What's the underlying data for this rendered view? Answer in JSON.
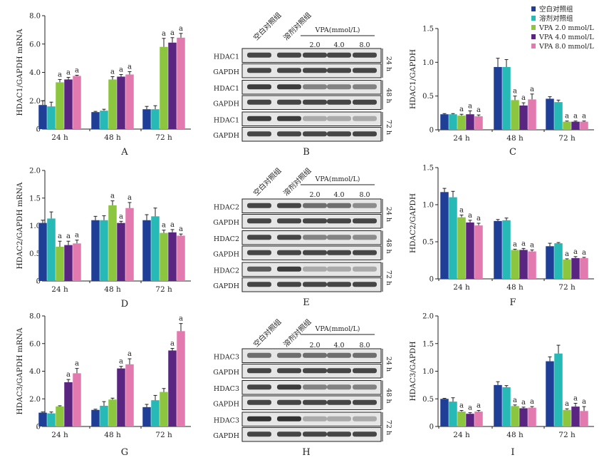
{
  "legend": {
    "entries": [
      {
        "label": "空白对照组",
        "color": "#1f3f97"
      },
      {
        "label": "溶剂对照组",
        "color": "#27b9b6"
      },
      {
        "label": "VPA 2.0 mmol/L",
        "color": "#8cc63f"
      },
      {
        "label": "VPA 4.0 mmol/L",
        "color": "#5a2580"
      },
      {
        "label": "VPA 8.0 mmol/L",
        "color": "#e27ab0"
      }
    ]
  },
  "chart_data": [
    {
      "panel": "A",
      "type": "bar",
      "ylabel": "HDAC1/GAPDH mRNA",
      "categories": [
        "24 h",
        "48 h",
        "72 h"
      ],
      "ylim": [
        0,
        8
      ],
      "yticks": [
        "0",
        "2.0",
        "4.0",
        "6.0",
        "8.0"
      ],
      "ytick_values": [
        0,
        2,
        4,
        6,
        8
      ],
      "series": [
        {
          "name": "空白对照组",
          "values": [
            1.7,
            1.2,
            1.4
          ],
          "errors": [
            0.3,
            0.05,
            0.2
          ]
        },
        {
          "name": "溶剂对照组",
          "values": [
            1.6,
            1.3,
            1.4
          ],
          "errors": [
            0.3,
            0.1,
            0.25
          ]
        },
        {
          "name": "VPA 2.0 mmol/L",
          "values": [
            3.3,
            3.5,
            5.8
          ],
          "errors": [
            0.2,
            0.2,
            0.6
          ]
        },
        {
          "name": "VPA 4.0 mmol/L",
          "values": [
            3.5,
            3.7,
            6.1
          ],
          "errors": [
            0.15,
            0.15,
            0.35
          ]
        },
        {
          "name": "VPA 8.0 mmol/L",
          "values": [
            3.75,
            3.85,
            6.45
          ],
          "errors": [
            0.05,
            0.2,
            0.3
          ]
        }
      ],
      "annotations": [
        "",
        "",
        "a",
        "a",
        "a"
      ]
    },
    {
      "panel": "C",
      "type": "bar",
      "ylabel": "HDAC1/GAPDH",
      "categories": [
        "24 h",
        "48 h",
        "72 h"
      ],
      "ylim": [
        0,
        1.5
      ],
      "yticks": [
        "0",
        "0.5",
        "1.0",
        "1.5"
      ],
      "ytick_values": [
        0,
        0.5,
        1.0,
        1.5
      ],
      "series": [
        {
          "name": "空白对照组",
          "values": [
            0.23,
            0.93,
            0.46
          ],
          "errors": [
            0.01,
            0.13,
            0.03
          ]
        },
        {
          "name": "溶剂对照组",
          "values": [
            0.23,
            0.93,
            0.41
          ],
          "errors": [
            0.01,
            0.11,
            0.03
          ]
        },
        {
          "name": "VPA 2.0 mmol/L",
          "values": [
            0.21,
            0.44,
            0.12
          ],
          "errors": [
            0.02,
            0.06,
            0.01
          ]
        },
        {
          "name": "VPA 4.0 mmol/L",
          "values": [
            0.23,
            0.36,
            0.12
          ],
          "errors": [
            0.05,
            0.04,
            0.01
          ]
        },
        {
          "name": "VPA 8.0 mmol/L",
          "values": [
            0.2,
            0.45,
            0.12
          ],
          "errors": [
            0.02,
            0.08,
            0.01
          ]
        }
      ],
      "annotations": [
        "",
        "",
        "a",
        "a",
        "a"
      ]
    },
    {
      "panel": "D",
      "type": "bar",
      "ylabel": "HDAC2/GAPDH mRNA",
      "categories": [
        "24 h",
        "48 h",
        "72 h"
      ],
      "ylim": [
        0,
        2.0
      ],
      "yticks": [
        "0",
        "0.5",
        "1.0",
        "1.5",
        "2.0"
      ],
      "ytick_values": [
        0,
        0.5,
        1.0,
        1.5,
        2.0
      ],
      "series": [
        {
          "name": "空白对照组",
          "values": [
            1.05,
            1.1,
            1.1
          ],
          "errors": [
            0.05,
            0.07,
            0.1
          ]
        },
        {
          "name": "溶剂对照组",
          "values": [
            1.13,
            1.1,
            1.17
          ],
          "errors": [
            0.12,
            0.08,
            0.15
          ]
        },
        {
          "name": "VPA 2.0 mmol/L",
          "values": [
            0.62,
            1.37,
            0.87
          ],
          "errors": [
            0.1,
            0.08,
            0.05
          ]
        },
        {
          "name": "VPA 4.0 mmol/L",
          "values": [
            0.65,
            1.05,
            0.88
          ],
          "errors": [
            0.07,
            0.03,
            0.05
          ]
        },
        {
          "name": "VPA 8.0 mmol/L",
          "values": [
            0.68,
            1.32,
            0.82
          ],
          "errors": [
            0.06,
            0.1,
            0.03
          ]
        }
      ],
      "annotations": [
        "",
        "",
        "a",
        "a",
        "a"
      ]
    },
    {
      "panel": "F",
      "type": "bar",
      "ylabel": "HDAC2/GAPDH",
      "categories": [
        "24 h",
        "48 h",
        "72 h"
      ],
      "ylim": [
        0,
        1.5
      ],
      "yticks": [
        "0",
        "0.5",
        "1.0",
        "1.5"
      ],
      "ytick_values": [
        0,
        0.5,
        1.0,
        1.5
      ],
      "series": [
        {
          "name": "空白对照组",
          "values": [
            1.17,
            0.78,
            0.44
          ],
          "errors": [
            0.05,
            0.02,
            0.04
          ]
        },
        {
          "name": "溶剂对照组",
          "values": [
            1.1,
            0.79,
            0.48
          ],
          "errors": [
            0.08,
            0.03,
            0.01
          ]
        },
        {
          "name": "VPA 2.0 mmol/L",
          "values": [
            0.83,
            0.39,
            0.26
          ],
          "errors": [
            0.03,
            0.01,
            0.01
          ]
        },
        {
          "name": "VPA 4.0 mmol/L",
          "values": [
            0.76,
            0.39,
            0.28
          ],
          "errors": [
            0.03,
            0.02,
            0.02
          ]
        },
        {
          "name": "VPA 8.0 mmol/L",
          "values": [
            0.72,
            0.37,
            0.28
          ],
          "errors": [
            0.03,
            0.02,
            0.01
          ]
        }
      ],
      "annotations": [
        "",
        "",
        "a",
        "a",
        "a"
      ]
    },
    {
      "panel": "G",
      "type": "bar",
      "ylabel": "HDAC3/GAPDH mRNA",
      "categories": [
        "24 h",
        "48 h",
        "72 h"
      ],
      "ylim": [
        0,
        8
      ],
      "yticks": [
        "0",
        "2.0",
        "4.0",
        "6.0",
        "8.0"
      ],
      "ytick_values": [
        0,
        2,
        4,
        6,
        8
      ],
      "series": [
        {
          "name": "空白对照组",
          "values": [
            1.0,
            1.2,
            1.4
          ],
          "errors": [
            0.05,
            0.05,
            0.2
          ]
        },
        {
          "name": "溶剂对照组",
          "values": [
            0.95,
            1.5,
            1.9
          ],
          "errors": [
            0.1,
            0.3,
            0.35
          ]
        },
        {
          "name": "VPA 2.0 mmol/L",
          "values": [
            1.45,
            1.95,
            2.5
          ],
          "errors": [
            0.05,
            0.1,
            0.25
          ]
        },
        {
          "name": "VPA 4.0 mmol/L",
          "values": [
            3.2,
            4.2,
            5.5
          ],
          "errors": [
            0.2,
            0.15,
            0.15
          ]
        },
        {
          "name": "VPA 8.0 mmol/L",
          "values": [
            3.85,
            4.5,
            6.9
          ],
          "errors": [
            0.35,
            0.4,
            0.55
          ]
        }
      ],
      "annotations": [
        "",
        "",
        "",
        "a",
        "a"
      ]
    },
    {
      "panel": "I",
      "type": "bar",
      "ylabel": "HDAC3/GAPDH",
      "categories": [
        "24 h",
        "48 h",
        "72 h"
      ],
      "ylim": [
        0,
        2.0
      ],
      "yticks": [
        "0",
        "0.5",
        "1.0",
        "1.5",
        "2.0"
      ],
      "ytick_values": [
        0,
        0.5,
        1.0,
        1.5,
        2.0
      ],
      "series": [
        {
          "name": "空白对照组",
          "values": [
            0.5,
            0.75,
            1.18
          ],
          "errors": [
            0.01,
            0.06,
            0.08
          ]
        },
        {
          "name": "溶剂对照组",
          "values": [
            0.45,
            0.71,
            1.32
          ],
          "errors": [
            0.07,
            0.03,
            0.15
          ]
        },
        {
          "name": "VPA 2.0 mmol/L",
          "values": [
            0.27,
            0.37,
            0.3
          ],
          "errors": [
            0.02,
            0.02,
            0.02
          ]
        },
        {
          "name": "VPA 4.0 mmol/L",
          "values": [
            0.23,
            0.33,
            0.36
          ],
          "errors": [
            0.02,
            0.02,
            0.06
          ]
        },
        {
          "name": "VPA 8.0 mmol/L",
          "values": [
            0.27,
            0.34,
            0.28
          ],
          "errors": [
            0.02,
            0.02,
            0.08
          ]
        }
      ],
      "annotations": [
        "",
        "",
        "a",
        "a",
        "a"
      ]
    }
  ],
  "blots": [
    {
      "panel": "B",
      "group_labels": [
        "空白对照组",
        "溶剂对照组"
      ],
      "vpa_label": "VPA(mmol/L)",
      "vpa_doses": [
        "2.0",
        "4.0",
        "8.0"
      ],
      "rows": [
        {
          "label": "HDAC1",
          "time": "24 h",
          "intensities": [
            0.8,
            0.8,
            0.8,
            0.8,
            0.8
          ]
        },
        {
          "label": "GAPDH",
          "time": "",
          "intensities": [
            0.8,
            0.8,
            0.8,
            0.8,
            0.8
          ]
        },
        {
          "label": "HDAC1",
          "time": "48 h",
          "intensities": [
            0.85,
            0.85,
            0.5,
            0.5,
            0.5
          ]
        },
        {
          "label": "GAPDH",
          "time": "",
          "intensities": [
            0.8,
            0.8,
            0.8,
            0.8,
            0.8
          ]
        },
        {
          "label": "HDAC1",
          "time": "72 h",
          "intensities": [
            0.85,
            0.85,
            0.3,
            0.3,
            0.3
          ]
        },
        {
          "label": "GAPDH",
          "time": "",
          "intensities": [
            0.8,
            0.8,
            0.8,
            0.8,
            0.8
          ]
        }
      ]
    },
    {
      "panel": "E",
      "group_labels": [
        "空白对照组",
        "溶剂对照组"
      ],
      "vpa_label": "VPA(mmol/L)",
      "vpa_doses": [
        "2.0",
        "4.0",
        "8.0"
      ],
      "rows": [
        {
          "label": "HDAC2",
          "time": "24 h",
          "intensities": [
            0.8,
            0.8,
            0.6,
            0.6,
            0.45
          ]
        },
        {
          "label": "GAPDH",
          "time": "",
          "intensities": [
            0.8,
            0.8,
            0.8,
            0.8,
            0.8
          ]
        },
        {
          "label": "HDAC2",
          "time": "48 h",
          "intensities": [
            0.8,
            0.8,
            0.5,
            0.5,
            0.45
          ]
        },
        {
          "label": "GAPDH",
          "time": "",
          "intensities": [
            0.8,
            0.8,
            0.8,
            0.8,
            0.8
          ]
        },
        {
          "label": "HDAC2",
          "time": "72 h",
          "intensities": [
            0.7,
            0.85,
            0.3,
            0.3,
            0.3
          ]
        },
        {
          "label": "GAPDH",
          "time": "",
          "intensities": [
            0.8,
            0.8,
            0.8,
            0.8,
            0.8
          ]
        }
      ]
    },
    {
      "panel": "H",
      "group_labels": [
        "空白对照组",
        "溶剂对照组"
      ],
      "vpa_label": "VPA(mmol/L)",
      "vpa_doses": [
        "2.0",
        "4.0",
        "8.0"
      ],
      "rows": [
        {
          "label": "HDAC3",
          "time": "24 h",
          "intensities": [
            0.6,
            0.6,
            0.6,
            0.6,
            0.6
          ]
        },
        {
          "label": "GAPDH",
          "time": "",
          "intensities": [
            0.8,
            0.8,
            0.8,
            0.8,
            0.8
          ]
        },
        {
          "label": "HDAC3",
          "time": "48 h",
          "intensities": [
            0.8,
            0.85,
            0.5,
            0.5,
            0.5
          ]
        },
        {
          "label": "GAPDH",
          "time": "",
          "intensities": [
            0.8,
            0.8,
            0.8,
            0.8,
            0.8
          ]
        },
        {
          "label": "HDAC3",
          "time": "72 h",
          "intensities": [
            0.9,
            0.9,
            0.3,
            0.3,
            0.3
          ]
        },
        {
          "label": "GAPDH",
          "time": "",
          "intensities": [
            0.8,
            0.8,
            0.8,
            0.8,
            0.8
          ]
        }
      ]
    }
  ]
}
